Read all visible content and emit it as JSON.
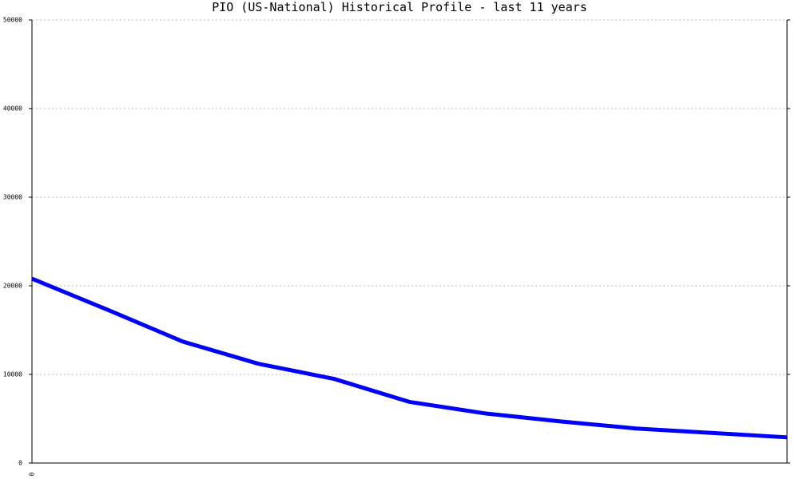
{
  "chart_data": {
    "type": "line",
    "title": "PIO (US-National) Historical Profile - last 11 years",
    "categories": [
      "0",
      null,
      null,
      null,
      null,
      null,
      null,
      null,
      null,
      null,
      null
    ],
    "series": [
      {
        "name": "PIO",
        "color": "#0000ff",
        "values": [
          20800,
          17300,
          13700,
          11200,
          9500,
          6900,
          5600,
          4700,
          3900,
          3400,
          2900
        ]
      }
    ],
    "ylim": [
      0,
      50000
    ],
    "yticks": [
      0,
      10000,
      20000,
      30000,
      40000,
      50000
    ],
    "grid": true
  }
}
